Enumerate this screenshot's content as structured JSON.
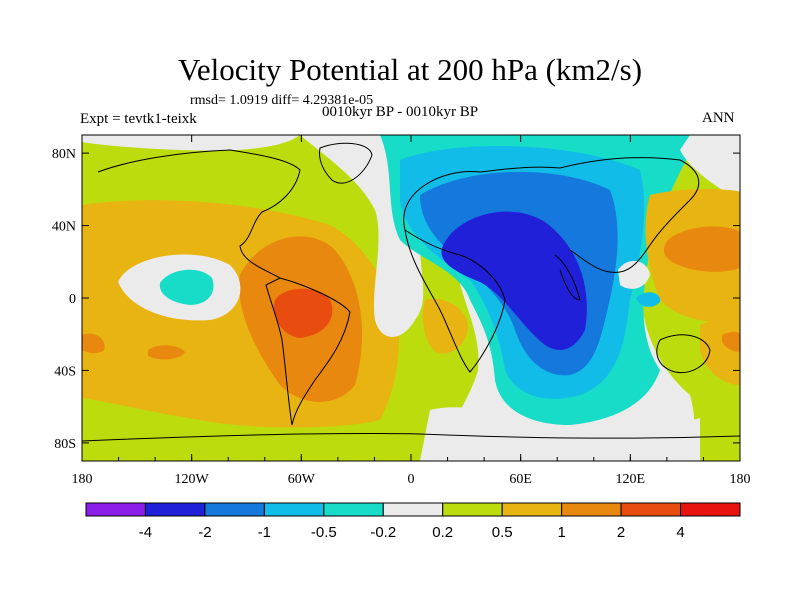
{
  "title": "Velocity Potential at 200 hPa (km2/s)",
  "stats": "rmsd= 1.0919 diff= 4.29381e-05",
  "expt": "Expt = tevtk1-teixk",
  "period": "0010kyr BP - 0010kyr BP",
  "season": "ANN",
  "map": {
    "lon_ticks": [
      "180",
      "120W",
      "60W",
      "0",
      "60E",
      "120E",
      "180"
    ],
    "lat_ticks": [
      "80N",
      "40N",
      "0",
      "40S",
      "80S"
    ]
  },
  "colorbar": {
    "levels": [
      "-4",
      "-2",
      "-1",
      "-0.5",
      "-0.2",
      "0.2",
      "0.5",
      "1",
      "2",
      "4"
    ],
    "colors": [
      "#8a1ee8",
      "#2020d8",
      "#1478dc",
      "#12bce8",
      "#16dcc8",
      "#ebebeb",
      "#bcdc0e",
      "#e8b412",
      "#e8880e",
      "#e84c0e",
      "#e8120e"
    ]
  },
  "palette": {
    "ocean_base": "#bcdc0e",
    "neg1": "#12bce8",
    "neg2": "#1478dc",
    "neg3": "#2020d8",
    "neg_small": "#16dcc8",
    "neutral": "#ebebeb",
    "pos1": "#e8b412",
    "pos2": "#e8880e",
    "pos3": "#e84c0e"
  }
}
